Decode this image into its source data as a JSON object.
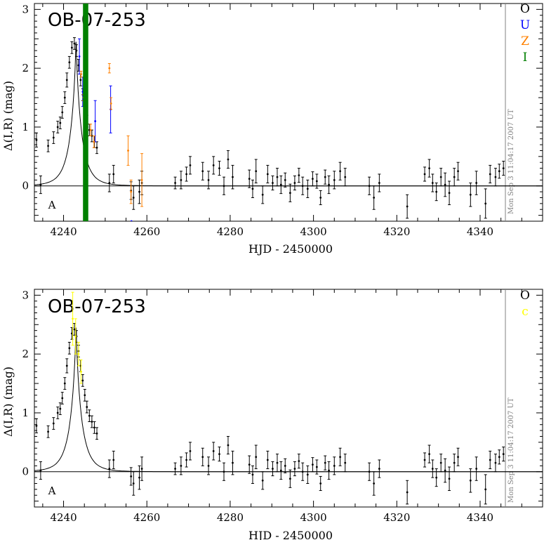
{
  "chart_data": [
    {
      "type": "scatter",
      "title": "OB-07-253",
      "xlabel": "HJD - 2450000",
      "ylabel": "Δ(I,R) (mag)",
      "xlim": [
        4233,
        4355
      ],
      "ylim": [
        -0.6,
        3.1
      ],
      "xticks": [
        4240,
        4260,
        4280,
        4300,
        4320,
        4340
      ],
      "yticks": [
        0,
        1,
        2,
        3
      ],
      "timestamp": "Mon Sep  3 11:04:17 2007 UT",
      "legend": [
        {
          "label": "O",
          "color": "#000000"
        },
        {
          "label": "U",
          "color": "#0000ff"
        },
        {
          "label": "Z",
          "color": "#ff8000"
        },
        {
          "label": "I",
          "color": "#008000"
        }
      ],
      "corner_marker": "A",
      "model": {
        "t0": 4243.0,
        "peak": 2.45,
        "tE": 3.2
      },
      "series": [
        {
          "name": "O",
          "color": "#000000",
          "x": [
            4233.5,
            4234.5,
            4236.3,
            4237.6,
            4238.6,
            4239.2,
            4239.7,
            4240.3,
            4240.8,
            4241.4,
            4242.0,
            4242.6,
            4243.1,
            4243.6,
            4244.1,
            4244.6,
            4245.1,
            4245.6,
            4246.2,
            4246.8,
            4247.4,
            4248.0,
            4251.0,
            4252.0,
            4256.2,
            4256.8,
            4258.2,
            4258.8,
            4266.8,
            4268.2,
            4269.5,
            4270.4,
            4273.4,
            4274.8,
            4276.0,
            4277.4,
            4278.5,
            4279.5,
            4280.6,
            4284.6,
            4285.4,
            4286.2,
            4287.8,
            4289.0,
            4290.2,
            4291.3,
            4292.2,
            4293.2,
            4294.4,
            4295.5,
            4296.5,
            4297.4,
            4298.6,
            4299.8,
            4300.8,
            4301.7,
            4302.8,
            4303.7,
            4305.0,
            4306.4,
            4307.6,
            4313.4,
            4314.5,
            4315.8,
            4322.5,
            4326.7,
            4327.8,
            4328.6,
            4329.5,
            4330.6,
            4331.6,
            4332.6,
            4333.8,
            4334.7,
            4337.7,
            4339.1,
            4341.3,
            4342.4,
            4343.7,
            4344.6,
            4345.6
          ],
          "y": [
            0.78,
            0.02,
            0.68,
            0.82,
            1.0,
            1.07,
            1.25,
            1.5,
            1.8,
            2.1,
            2.35,
            2.42,
            2.3,
            2.05,
            1.8,
            1.55,
            1.3,
            1.1,
            0.95,
            0.85,
            0.75,
            0.65,
            0.05,
            0.2,
            -0.08,
            -0.2,
            -0.1,
            0.05,
            0.05,
            0.1,
            0.2,
            0.35,
            0.25,
            0.1,
            0.35,
            0.3,
            0.0,
            0.45,
            0.15,
            0.12,
            -0.05,
            0.25,
            -0.15,
            0.2,
            0.05,
            0.15,
            0.02,
            0.1,
            -0.12,
            0.05,
            0.18,
            0.0,
            -0.05,
            0.12,
            0.08,
            -0.2,
            0.15,
            0.02,
            0.1,
            0.25,
            0.15,
            0.0,
            -0.2,
            0.05,
            -0.35,
            0.2,
            0.3,
            0.05,
            -0.1,
            0.15,
            0.02,
            -0.12,
            0.15,
            0.25,
            -0.15,
            0.05,
            -0.3,
            0.2,
            0.15,
            0.25,
            0.3
          ],
          "err": [
            0.12,
            0.15,
            0.1,
            0.1,
            0.1,
            0.1,
            0.1,
            0.1,
            0.12,
            0.1,
            0.1,
            0.1,
            0.1,
            0.1,
            0.1,
            0.1,
            0.1,
            0.1,
            0.1,
            0.1,
            0.1,
            0.1,
            0.15,
            0.15,
            0.15,
            0.2,
            0.2,
            0.2,
            0.1,
            0.15,
            0.12,
            0.15,
            0.15,
            0.15,
            0.15,
            0.12,
            0.15,
            0.15,
            0.2,
            0.15,
            0.15,
            0.2,
            0.15,
            0.15,
            0.12,
            0.15,
            0.15,
            0.12,
            0.15,
            0.12,
            0.12,
            0.15,
            0.15,
            0.12,
            0.12,
            0.12,
            0.12,
            0.15,
            0.15,
            0.15,
            0.15,
            0.15,
            0.2,
            0.15,
            0.2,
            0.12,
            0.15,
            0.15,
            0.15,
            0.15,
            0.2,
            0.2,
            0.15,
            0.15,
            0.2,
            0.2,
            0.25,
            0.15,
            0.15,
            0.12,
            0.12
          ]
        },
        {
          "name": "U",
          "color": "#0000ff",
          "x": [
            4243.8,
            4244.6,
            4245.3,
            4247.6,
            4251.3,
            4256.3
          ],
          "y": [
            2.2,
            1.6,
            1.3,
            1.1,
            1.3,
            -0.6
          ],
          "err": [
            0.3,
            0.25,
            0.25,
            0.35,
            0.4,
            0.0
          ]
        },
        {
          "name": "Z",
          "color": "#ff8000",
          "x": [
            4244.2,
            4244.8,
            4246.5,
            4247.3,
            4251.0,
            4251.4,
            4255.5,
            4256.2,
            4258.8
          ],
          "y": [
            1.9,
            1.5,
            0.95,
            0.75,
            2.0,
            1.4,
            0.6,
            -0.1,
            0.1
          ],
          "err": [
            0.05,
            0.05,
            0.1,
            0.1,
            0.08,
            0.1,
            0.25,
            0.2,
            0.45
          ]
        },
        {
          "name": "I",
          "color": "#008000",
          "x": [
            4245.0,
            4245.6
          ],
          "y": [
            1.35,
            1.3
          ],
          "err": [
            2.0,
            2.0
          ]
        }
      ]
    },
    {
      "type": "scatter",
      "title": "OB-07-253",
      "xlabel": "HJD - 2450000",
      "ylabel": "Δ(I,R) (mag)",
      "xlim": [
        4233,
        4355
      ],
      "ylim": [
        -0.6,
        3.1
      ],
      "xticks": [
        4240,
        4260,
        4280,
        4300,
        4320,
        4340
      ],
      "yticks": [
        0,
        1,
        2,
        3
      ],
      "timestamp": "Mon Sep  3 11:04:17 2007 UT",
      "legend": [
        {
          "label": "O",
          "color": "#000000"
        },
        {
          "label": "c",
          "color": "#ffff00"
        }
      ],
      "corner_marker": "A",
      "model": {
        "t0": 4243.0,
        "peak": 2.45,
        "tE": 3.2
      },
      "series": [
        {
          "name": "O",
          "color": "#000000",
          "x": [
            4233.5,
            4234.5,
            4236.3,
            4237.6,
            4238.6,
            4239.2,
            4239.7,
            4240.3,
            4240.8,
            4241.4,
            4242.0,
            4242.6,
            4243.1,
            4243.6,
            4244.1,
            4244.6,
            4245.1,
            4245.6,
            4246.2,
            4246.8,
            4247.4,
            4248.0,
            4251.0,
            4252.0,
            4256.2,
            4256.8,
            4258.2,
            4258.8,
            4266.8,
            4268.2,
            4269.5,
            4270.4,
            4273.4,
            4274.8,
            4276.0,
            4277.4,
            4278.5,
            4279.5,
            4280.6,
            4284.6,
            4285.4,
            4286.2,
            4287.8,
            4289.0,
            4290.2,
            4291.3,
            4292.2,
            4293.2,
            4294.4,
            4295.5,
            4296.5,
            4297.4,
            4298.6,
            4299.8,
            4300.8,
            4301.7,
            4302.8,
            4303.7,
            4305.0,
            4306.4,
            4307.6,
            4313.4,
            4314.5,
            4315.8,
            4322.5,
            4326.7,
            4327.8,
            4328.6,
            4329.5,
            4330.6,
            4331.6,
            4332.6,
            4333.8,
            4334.7,
            4337.7,
            4339.1,
            4341.3,
            4342.4,
            4343.7,
            4344.6,
            4345.6
          ],
          "y": [
            0.78,
            0.02,
            0.68,
            0.82,
            1.0,
            1.07,
            1.25,
            1.5,
            1.8,
            2.1,
            2.35,
            2.42,
            2.3,
            2.05,
            1.8,
            1.55,
            1.3,
            1.1,
            0.95,
            0.85,
            0.75,
            0.65,
            0.05,
            0.2,
            -0.08,
            -0.2,
            -0.1,
            0.05,
            0.05,
            0.1,
            0.2,
            0.35,
            0.25,
            0.1,
            0.35,
            0.3,
            0.0,
            0.45,
            0.15,
            0.12,
            -0.05,
            0.25,
            -0.15,
            0.2,
            0.05,
            0.15,
            0.02,
            0.1,
            -0.12,
            0.05,
            0.18,
            0.0,
            -0.05,
            0.12,
            0.08,
            -0.2,
            0.15,
            0.02,
            0.1,
            0.25,
            0.15,
            0.0,
            -0.2,
            0.05,
            -0.35,
            0.2,
            0.3,
            0.05,
            -0.1,
            0.15,
            0.02,
            -0.12,
            0.15,
            0.25,
            -0.15,
            0.05,
            -0.3,
            0.2,
            0.15,
            0.25,
            0.3
          ],
          "err": [
            0.12,
            0.15,
            0.1,
            0.1,
            0.1,
            0.1,
            0.1,
            0.1,
            0.12,
            0.1,
            0.1,
            0.1,
            0.1,
            0.1,
            0.1,
            0.1,
            0.1,
            0.1,
            0.1,
            0.1,
            0.1,
            0.1,
            0.15,
            0.15,
            0.15,
            0.2,
            0.2,
            0.2,
            0.1,
            0.15,
            0.12,
            0.15,
            0.15,
            0.15,
            0.15,
            0.12,
            0.15,
            0.15,
            0.2,
            0.15,
            0.15,
            0.2,
            0.15,
            0.15,
            0.12,
            0.15,
            0.15,
            0.12,
            0.15,
            0.12,
            0.12,
            0.15,
            0.15,
            0.12,
            0.12,
            0.12,
            0.12,
            0.15,
            0.15,
            0.15,
            0.15,
            0.15,
            0.2,
            0.15,
            0.2,
            0.12,
            0.15,
            0.15,
            0.15,
            0.15,
            0.2,
            0.2,
            0.15,
            0.15,
            0.2,
            0.2,
            0.25,
            0.15,
            0.15,
            0.12,
            0.12
          ]
        },
        {
          "name": "c",
          "color": "#ffff00",
          "x": [
            4242.2,
            4242.9,
            4243.6,
            4244.2
          ],
          "y": [
            2.6,
            2.3,
            2.0,
            1.7
          ],
          "err": [
            0.45,
            0.3,
            0.2,
            0.2
          ]
        }
      ]
    }
  ]
}
